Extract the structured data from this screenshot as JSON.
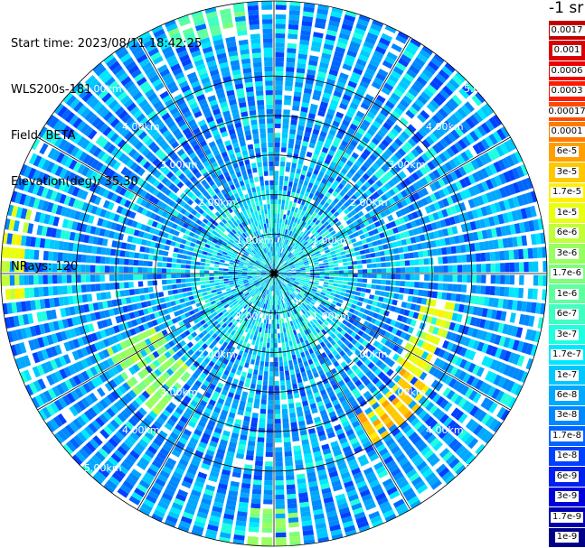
{
  "header": {
    "start_time": "Start time: 2023/08/11 18:42:25",
    "instrument": "WLS200s-181",
    "field": "Field: BETA",
    "elevation": "Elevation(deg): 35.30",
    "nrays": "NRays: 120"
  },
  "colorbar": {
    "unit_label": "-1 sr",
    "levels": [
      "0.0017",
      "0.001",
      "0.0006",
      "0.0003",
      "0.00017",
      "0.0001",
      "6e-5",
      "3e-5",
      "1.7e-5",
      "1e-5",
      "6e-6",
      "3e-6",
      "1.7e-6",
      "1e-6",
      "6e-7",
      "3e-7",
      "1.7e-7",
      "1e-7",
      "6e-8",
      "3e-8",
      "1.7e-8",
      "1e-8",
      "6e-9",
      "3e-9",
      "1.7e-9",
      "1e-9"
    ],
    "colors": [
      "#c40000",
      "#d80000",
      "#ec0000",
      "#ff1a00",
      "#ff4a00",
      "#ff7a00",
      "#ffa000",
      "#ffc800",
      "#fff000",
      "#e8ff10",
      "#c0ff38",
      "#98ff60",
      "#7cff7c",
      "#60ffa0",
      "#40ffc0",
      "#20ffe0",
      "#00e8ff",
      "#00c8ff",
      "#00a8ff",
      "#0088ff",
      "#0064ff",
      "#0040ff",
      "#0020f0",
      "#0000d8",
      "#0000b0",
      "#000088"
    ]
  },
  "chart_data": {
    "type": "heatmap",
    "title": "",
    "subtitle": "",
    "projection": "polar PPI scan",
    "field": "BETA",
    "elevation_deg": 35.3,
    "n_rays": 120,
    "range_rings_km": [
      1.0,
      2.0,
      3.0,
      4.0,
      5.0
    ],
    "ring_labels": [
      "1.00km",
      "2.00km",
      "3.00km",
      "4.00km",
      "5.00km"
    ],
    "azimuth_spoke_step_deg": 30,
    "max_range_km": 6.9,
    "color_scale": "log",
    "value_range": [
      1e-09,
      0.0017
    ],
    "dominant_value_range": [
      1e-08,
      1e-07
    ],
    "high_return_sectors": [
      {
        "azimuth_deg_range": [
          335,
          355
        ],
        "range_km": [
          6.2,
          6.9
        ],
        "value": 1e-06
      },
      {
        "azimuth_deg_range": [
          100,
          125
        ],
        "range_km": [
          3.8,
          4.6
        ],
        "value": 1e-05
      },
      {
        "azimuth_deg_range": [
          125,
          150
        ],
        "range_km": [
          4.0,
          5.0
        ],
        "value": 3e-05
      },
      {
        "azimuth_deg_range": [
          220,
          245
        ],
        "range_km": [
          3.2,
          4.6
        ],
        "value": 3e-06
      },
      {
        "azimuth_deg_range": [
          265,
          285
        ],
        "range_km": [
          6.3,
          6.9
        ],
        "value": 1e-05
      },
      {
        "azimuth_deg_range": [
          175,
          185
        ],
        "range_km": [
          5.9,
          6.9
        ],
        "value": 3e-06
      }
    ]
  }
}
